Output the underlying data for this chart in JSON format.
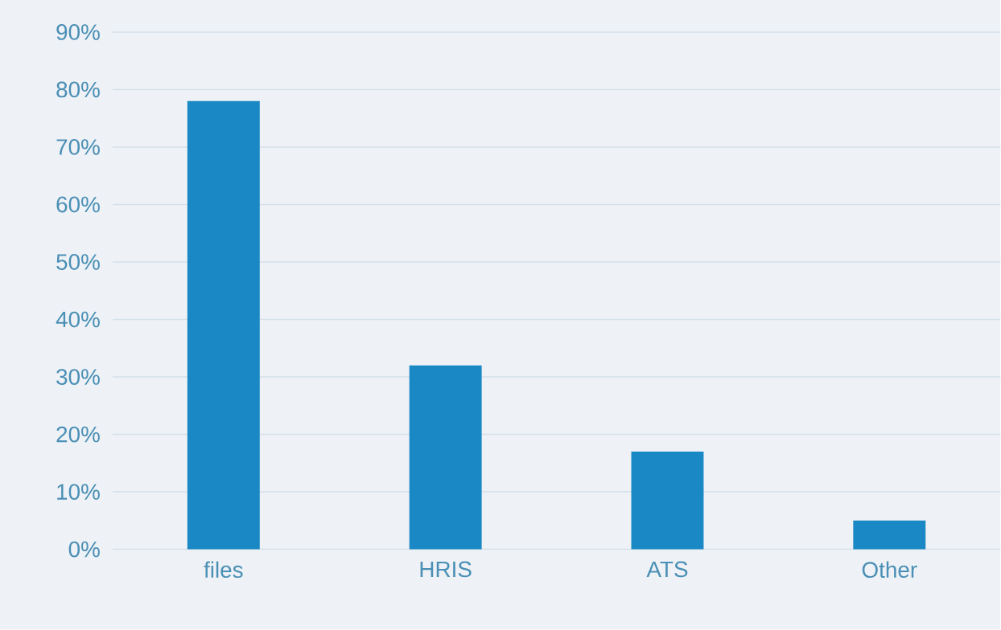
{
  "chart_data": {
    "type": "bar",
    "categories": [
      "files",
      "HRIS",
      "ATS",
      "Other"
    ],
    "values": [
      78,
      32,
      17,
      5
    ],
    "color": "#1a88c4",
    "ylim": [
      0,
      90
    ],
    "yticks": [
      {
        "value": 0,
        "label": "0%"
      },
      {
        "value": 10,
        "label": "10%"
      },
      {
        "value": 20,
        "label": "20%"
      },
      {
        "value": 30,
        "label": "30%"
      },
      {
        "value": 40,
        "label": "40%"
      },
      {
        "value": 50,
        "label": "50%"
      },
      {
        "value": 60,
        "label": "60%"
      },
      {
        "value": 70,
        "label": "70%"
      },
      {
        "value": 80,
        "label": "80%"
      },
      {
        "value": 90,
        "label": "90%"
      }
    ],
    "grid": "y"
  }
}
